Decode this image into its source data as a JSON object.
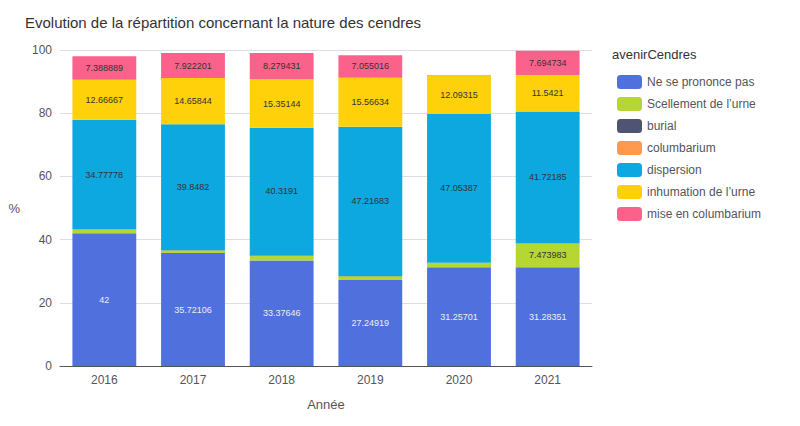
{
  "chart_data": {
    "type": "bar",
    "title": "Evolution de la répartition concernant la nature des cendres",
    "x_label": "Année",
    "y_label": "%",
    "legend_title": "avenirCendres",
    "categories": [
      "2016",
      "2017",
      "2018",
      "2019",
      "2020",
      "2021"
    ],
    "stacked": true,
    "grid": true,
    "legend": "right",
    "data_labels": true,
    "ylim": [
      0,
      100
    ],
    "yticks": [
      0,
      20,
      40,
      60,
      80,
      100
    ],
    "series": [
      {
        "name": "Ne se prononce pas",
        "values": [
          42.0,
          35.72106,
          33.37646,
          27.24919,
          31.25701,
          31.28351
        ],
        "value_labels": [
          "42",
          "35.72106",
          "33.37646",
          "27.24919",
          "31.25701",
          "31.28351"
        ]
      },
      {
        "name": "Scellement de l’urne",
        "values": [
          1.16556,
          0.85724,
          1.49614,
          1.11997,
          1.38701,
          7.473983
        ],
        "value_labels": [
          null,
          null,
          null,
          null,
          null,
          "7.473983"
        ]
      },
      {
        "name": "burial",
        "values": [
          0.0,
          0.04,
          0.19,
          0.1,
          0.04,
          0.04
        ],
        "value_labels": [
          null,
          null,
          null,
          null,
          null,
          null
        ]
      },
      {
        "name": "columbarium",
        "values": [
          0.0,
          0.0,
          0.0,
          0.0,
          0.0,
          0.0
        ],
        "value_labels": [
          null,
          null,
          null,
          null,
          null,
          null
        ]
      },
      {
        "name": "dispersion",
        "values": [
          34.77778,
          39.8482,
          40.3191,
          47.21683,
          47.05387,
          41.72185
        ],
        "value_labels": [
          "34.77778",
          "39.8482",
          "40.3191",
          "47.21683",
          "47.05387",
          "41.72185"
        ]
      },
      {
        "name": "inhumation de l’urne",
        "values": [
          12.66667,
          14.65844,
          15.35144,
          15.56634,
          12.09315,
          11.5421
        ],
        "value_labels": [
          "12.66667",
          "14.65844",
          "15.35144",
          "15.56634",
          "12.09315",
          "11.5421"
        ]
      },
      {
        "name": "mise en columbarium",
        "values": [
          7.388889,
          7.922201,
          8.279431,
          7.055016,
          0.15494,
          7.694734
        ],
        "value_labels": [
          "7.388889",
          "7.922201",
          "8.279431",
          "7.055016",
          null,
          "7.694734"
        ]
      }
    ]
  }
}
